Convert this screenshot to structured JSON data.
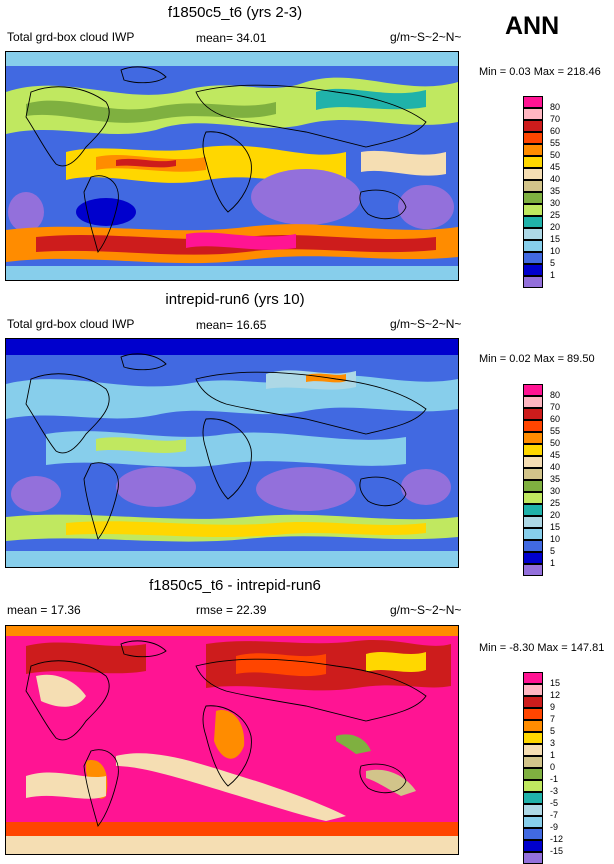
{
  "season": "ANN",
  "panels": [
    {
      "title": "f1850c5_t6 (yrs 2-3)",
      "left_label": "Total grd-box cloud IWP",
      "stat_label": "mean=  34.01",
      "units": "g/m~S~2~N~",
      "minmax": "Min =   0.03 Max = 218.46",
      "levels": [
        "80",
        "70",
        "60",
        "55",
        "50",
        "45",
        "40",
        "35",
        "30",
        "25",
        "20",
        "15",
        "10",
        "5",
        "1"
      ]
    },
    {
      "title": "intrepid-run6 (yrs 10)",
      "left_label": "Total grd-box cloud IWP",
      "stat_label": "mean=  16.65",
      "units": "g/m~S~2~N~",
      "minmax": "Min =   0.02 Max =  89.50",
      "levels": [
        "80",
        "70",
        "60",
        "55",
        "50",
        "45",
        "40",
        "35",
        "30",
        "25",
        "20",
        "15",
        "10",
        "5",
        "1"
      ]
    },
    {
      "title": "f1850c5_t6 - intrepid-run6",
      "left_label": "mean =  17.36",
      "stat_label": "rmse =  22.39",
      "units": "g/m~S~2~N~",
      "minmax": "Min =  -8.30 Max = 147.81",
      "levels": [
        "15",
        "12",
        "9",
        "7",
        "5",
        "3",
        "1",
        "0",
        "-1",
        "-3",
        "-5",
        "-7",
        "-9",
        "-12",
        "-15"
      ]
    }
  ],
  "colors": {
    "palette": [
      "#ff1493",
      "#ffb6c1",
      "#cd1c1c",
      "#ff4500",
      "#ff8c00",
      "#ffd700",
      "#f5deb3",
      "#d2c48a",
      "#7fb040",
      "#c0e860",
      "#20b2aa",
      "#add8e6",
      "#87ceeb",
      "#4169e1",
      "#0000cd",
      "#9370db"
    ]
  },
  "chart_data": [
    {
      "type": "heatmap",
      "title": "f1850c5_t6 (yrs 2-3)",
      "variable": "Total grd-box cloud IWP",
      "units": "g/m~S~2~N~",
      "mean": 34.01,
      "min": 0.03,
      "max": 218.46,
      "contour_levels": [
        1,
        5,
        10,
        15,
        20,
        25,
        30,
        35,
        40,
        45,
        50,
        55,
        60,
        70,
        80
      ]
    },
    {
      "type": "heatmap",
      "title": "intrepid-run6 (yrs 10)",
      "variable": "Total grd-box cloud IWP",
      "units": "g/m~S~2~N~",
      "mean": 16.65,
      "min": 0.02,
      "max": 89.5,
      "contour_levels": [
        1,
        5,
        10,
        15,
        20,
        25,
        30,
        35,
        40,
        45,
        50,
        55,
        60,
        70,
        80
      ]
    },
    {
      "type": "heatmap",
      "title": "f1850c5_t6 - intrepid-run6",
      "units": "g/m~S~2~N~",
      "mean": 17.36,
      "rmse": 22.39,
      "min": -8.3,
      "max": 147.81,
      "contour_levels": [
        -15,
        -12,
        -9,
        -7,
        -5,
        -3,
        -1,
        0,
        1,
        3,
        5,
        7,
        9,
        12,
        15
      ]
    }
  ]
}
